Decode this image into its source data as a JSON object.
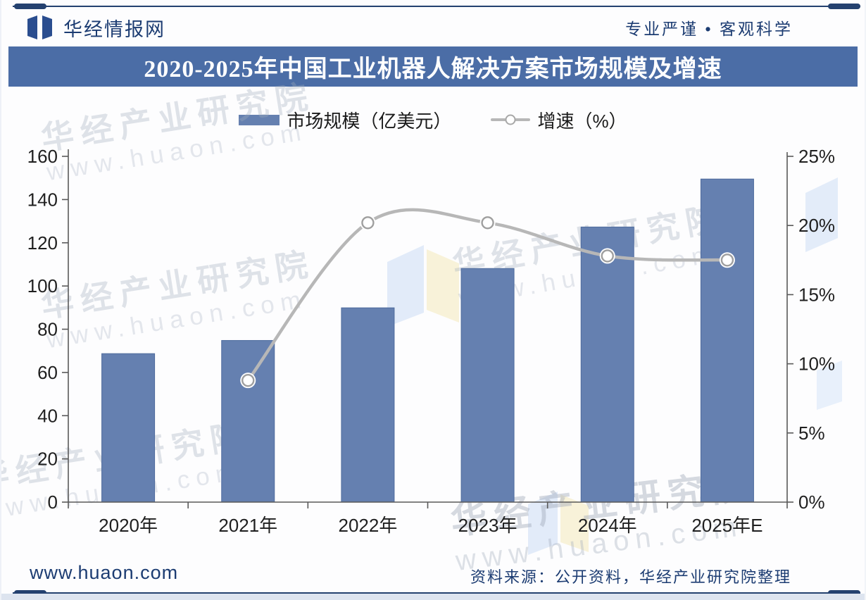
{
  "header": {
    "brand": "华经情报网",
    "slogan": "专业严谨 • 客观科学"
  },
  "title": "2020-2025年中国工业机器人解决方案市场规模及增速",
  "legend": {
    "bar_label": "市场规模（亿美元）",
    "line_label": "增速（%）"
  },
  "watermark": {
    "line1": "华经产业研究院",
    "line2": "www.huaon.com"
  },
  "footer": {
    "site": "www.huaon.com",
    "source": "资料来源：公开资料，华经产业研究院整理"
  },
  "colors": {
    "title_bg": "#4b6da6",
    "navy_text": "#1c3c72",
    "bar_fill": "#6580b0",
    "bar_edge": "#4e6b9d",
    "line_gray": "#b7b7b7",
    "marker_fill": "#ffffff",
    "marker_edge": "#9f9f9f",
    "axis_line": "#595959",
    "tick_text": "#1f1f1f"
  },
  "chart_data": {
    "type": "bar",
    "subtype": "bar+line combo, dual axis",
    "title": "2020-2025年中国工业机器人解决方案市场规模及增速",
    "categories": [
      "2020年",
      "2021年",
      "2022年",
      "2023年",
      "2024年",
      "2025年E"
    ],
    "series": [
      {
        "name": "市场规模（亿美元）",
        "type": "bar",
        "axis": "left",
        "values": [
          68.7,
          74.8,
          89.9,
          108.1,
          127.3,
          149.5
        ]
      },
      {
        "name": "增速（%）",
        "type": "line",
        "axis": "right",
        "values": [
          null,
          8.8,
          20.2,
          20.2,
          17.8,
          17.5
        ]
      }
    ],
    "left_axis": {
      "min": 0,
      "max": 160,
      "step": 20,
      "tick_labels": [
        "0",
        "20",
        "40",
        "60",
        "80",
        "100",
        "120",
        "140",
        "160"
      ]
    },
    "right_axis": {
      "min": 0,
      "max": 25,
      "step": 5,
      "tick_labels": [
        "0%",
        "5%",
        "10%",
        "15%",
        "20%",
        "25%"
      ]
    },
    "grid": false,
    "legend_position": "top-center",
    "line_smoothing": "catmull-rom spline with overshoot between equal points"
  }
}
